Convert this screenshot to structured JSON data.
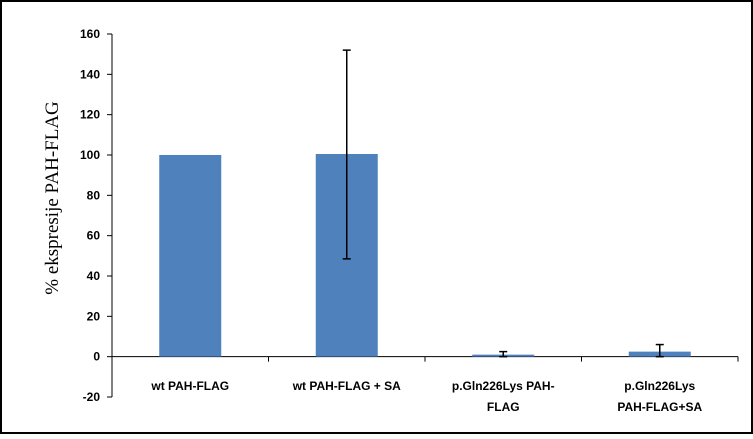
{
  "chart_data": {
    "type": "bar",
    "title": "",
    "xlabel": "",
    "ylabel": "% ekspresije PAH-FLAG",
    "ylim": [
      -20,
      160
    ],
    "yticks": [
      -20,
      0,
      20,
      40,
      60,
      80,
      100,
      120,
      140,
      160
    ],
    "grid": false,
    "legend": "none",
    "bar_color": "#4F81BD",
    "categories": [
      [
        "wt PAH-FLAG"
      ],
      [
        "wt PAH-FLAG + SA"
      ],
      [
        "p.Gln226Lys PAH-",
        "FLAG"
      ],
      [
        "p.Gln226Lys",
        "PAH-FLAG+SA"
      ]
    ],
    "values": [
      100,
      100.5,
      1,
      2.5
    ],
    "error_low": [
      100,
      48.5,
      0,
      0
    ],
    "error_high": [
      100,
      152,
      2.5,
      6
    ]
  }
}
